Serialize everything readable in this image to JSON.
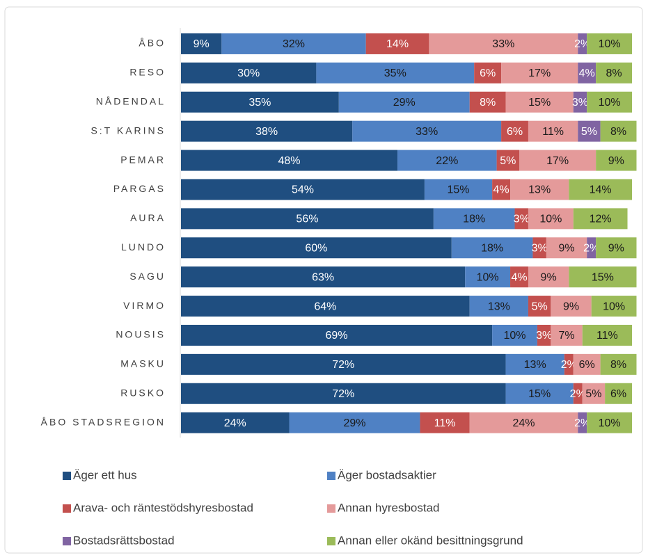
{
  "chart_data": {
    "type": "stacked-barh",
    "categories": [
      "ÅBO",
      "RESO",
      "NÅDENDAL",
      "S:T KARINS",
      "PEMAR",
      "PARGAS",
      "AURA",
      "LUNDO",
      "SAGU",
      "VIRMO",
      "NOUSIS",
      "MASKU",
      "RUSKO",
      "ÅBO STADSREGION"
    ],
    "xlim": [
      0,
      100
    ],
    "legend": "bottom",
    "series": [
      {
        "name": "Äger ett hus",
        "color": "#1f4e80",
        "label_color": "#ffffff",
        "values": [
          9,
          30,
          35,
          38,
          48,
          54,
          56,
          60,
          63,
          64,
          69,
          72,
          72,
          24
        ],
        "value_labels": [
          "9%",
          "30%",
          "35%",
          "38%",
          "48%",
          "54%",
          "56%",
          "60%",
          "63%",
          "64%",
          "69%",
          "72%",
          "72%",
          "24%"
        ]
      },
      {
        "name": "Äger bostadsaktier",
        "color": "#4f81c4",
        "label_color": "#1a1a1a",
        "values": [
          32,
          35,
          29,
          33,
          22,
          15,
          18,
          18,
          10,
          13,
          10,
          13,
          15,
          29
        ],
        "value_labels": [
          "32%",
          "35%",
          "29%",
          "33%",
          "22%",
          "15%",
          "18%",
          "18%",
          "10%",
          "13%",
          "10%",
          "13%",
          "15%",
          "29%"
        ]
      },
      {
        "name": "Arava- och räntestödshyresbostad",
        "color": "#c3504e",
        "label_color": "#ffffff",
        "values": [
          14,
          6,
          8,
          6,
          5,
          4,
          3,
          3,
          4,
          5,
          3,
          2,
          2,
          11
        ],
        "value_labels": [
          "14%",
          "6%",
          "8%",
          "6%",
          "5%",
          "4%",
          "3%",
          "3%",
          "4%",
          "5%",
          "3%",
          "2%",
          "2%",
          "11%"
        ]
      },
      {
        "name": "Annan hyresbostad",
        "color": "#e49a9a",
        "label_color": "#1a1a1a",
        "values": [
          33,
          17,
          15,
          11,
          17,
          13,
          10,
          9,
          9,
          9,
          7,
          6,
          5,
          24
        ],
        "value_labels": [
          "33%",
          "17%",
          "15%",
          "11%",
          "17%",
          "13%",
          "10%",
          "9%",
          "9%",
          "9%",
          "7%",
          "6%",
          "5%",
          "24%"
        ]
      },
      {
        "name": "Bostadsrättsbostad",
        "color": "#8064a2",
        "label_color": "#ffffff",
        "values": [
          2,
          4,
          3,
          5,
          null,
          null,
          null,
          2,
          null,
          null,
          null,
          null,
          null,
          2
        ],
        "value_labels": [
          "2%",
          "4%",
          "3%",
          "5%",
          null,
          null,
          null,
          "2%",
          null,
          null,
          null,
          null,
          null,
          "2%"
        ]
      },
      {
        "name": "Annan eller okänd besittningsgrund",
        "color": "#9bbb59",
        "label_color": "#1a1a1a",
        "values": [
          10,
          8,
          10,
          8,
          9,
          14,
          12,
          9,
          15,
          10,
          11,
          8,
          6,
          10
        ],
        "value_labels": [
          "10%",
          "8%",
          "10%",
          "8%",
          "9%",
          "14%",
          "12%",
          "9%",
          "15%",
          "10%",
          "11%",
          "8%",
          "6%",
          "10%"
        ]
      }
    ]
  }
}
